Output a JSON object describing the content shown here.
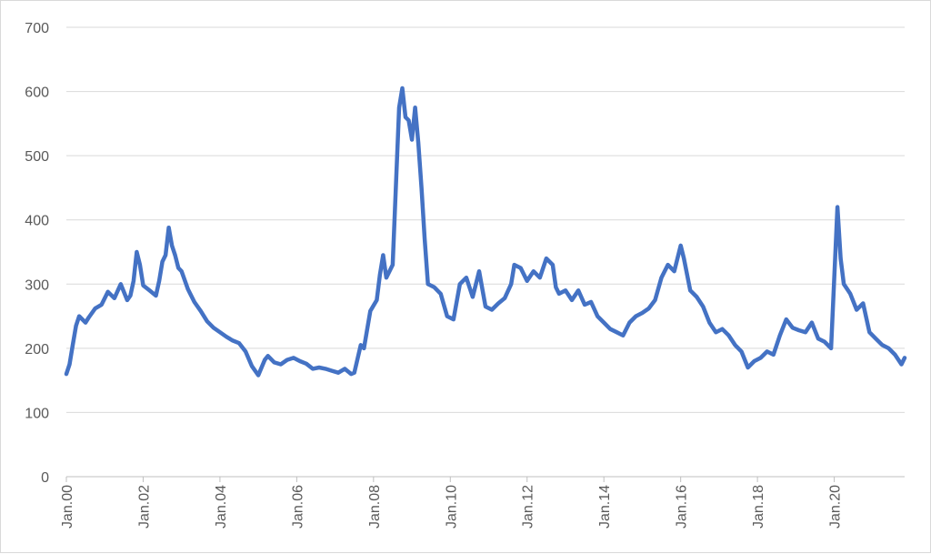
{
  "chart_data": {
    "type": "line",
    "title": "",
    "xlabel": "",
    "ylabel": "",
    "ylim": [
      0,
      700
    ],
    "yticks": [
      0,
      100,
      200,
      300,
      400,
      500,
      600,
      700
    ],
    "ytick_labels": [
      "0",
      "100",
      "200",
      "300",
      "400",
      "500",
      "600",
      "700"
    ],
    "xlim": [
      "2000-01",
      "2021-11"
    ],
    "xtick_dates": [
      "2000-01",
      "2002-01",
      "2004-01",
      "2006-01",
      "2008-01",
      "2010-01",
      "2012-01",
      "2014-01",
      "2016-01",
      "2018-01",
      "2020-01"
    ],
    "xtick_labels": [
      "Jan.00",
      "Jan.02",
      "Jan.04",
      "Jan.06",
      "Jan.08",
      "Jan.10",
      "Jan.12",
      "Jan.14",
      "Jan.16",
      "Jan.18",
      "Jan.20"
    ],
    "grid": true,
    "legend": "none",
    "line_color": "#4472c4",
    "series": [
      {
        "x": [
          "2000-01",
          "2000-02",
          "2000-03",
          "2000-04",
          "2000-05",
          "2000-07",
          "2000-08",
          "2000-10",
          "2000-12",
          "2001-02",
          "2001-04",
          "2001-06",
          "2001-08",
          "2001-09",
          "2001-10",
          "2001-11",
          "2001-12",
          "2002-01",
          "2002-03",
          "2002-05",
          "2002-06",
          "2002-07",
          "2002-08",
          "2002-09",
          "2002-10",
          "2002-11",
          "2002-12",
          "2003-01",
          "2003-03",
          "2003-05",
          "2003-07",
          "2003-09",
          "2003-11",
          "2004-01",
          "2004-03",
          "2004-05",
          "2004-07",
          "2004-09",
          "2004-11",
          "2005-01",
          "2005-03",
          "2005-04",
          "2005-06",
          "2005-08",
          "2005-10",
          "2005-12",
          "2006-02",
          "2006-04",
          "2006-06",
          "2006-08",
          "2006-10",
          "2006-12",
          "2007-02",
          "2007-04",
          "2007-06",
          "2007-07",
          "2007-09",
          "2007-10",
          "2007-12",
          "2008-02",
          "2008-03",
          "2008-04",
          "2008-05",
          "2008-07",
          "2008-09",
          "2008-10",
          "2008-11",
          "2008-12",
          "2009-01",
          "2009-02",
          "2009-03",
          "2009-04",
          "2009-05",
          "2009-06",
          "2009-08",
          "2009-10",
          "2009-12",
          "2010-02",
          "2010-04",
          "2010-06",
          "2010-08",
          "2010-10",
          "2010-12",
          "2011-02",
          "2011-04",
          "2011-06",
          "2011-08",
          "2011-09",
          "2011-11",
          "2012-01",
          "2012-03",
          "2012-05",
          "2012-07",
          "2012-09",
          "2012-10",
          "2012-11",
          "2013-01",
          "2013-03",
          "2013-05",
          "2013-07",
          "2013-09",
          "2013-11",
          "2014-01",
          "2014-03",
          "2014-05",
          "2014-07",
          "2014-09",
          "2014-11",
          "2015-01",
          "2015-03",
          "2015-05",
          "2015-07",
          "2015-09",
          "2015-11",
          "2016-01",
          "2016-02",
          "2016-04",
          "2016-06",
          "2016-08",
          "2016-10",
          "2016-12",
          "2017-02",
          "2017-04",
          "2017-06",
          "2017-08",
          "2017-10",
          "2017-12",
          "2018-02",
          "2018-04",
          "2018-06",
          "2018-08",
          "2018-10",
          "2018-12",
          "2019-02",
          "2019-04",
          "2019-06",
          "2019-08",
          "2019-10",
          "2019-12",
          "2020-02",
          "2020-03",
          "2020-04",
          "2020-06",
          "2020-08",
          "2020-10",
          "2020-12",
          "2021-02",
          "2021-04",
          "2021-06",
          "2021-08",
          "2021-10",
          "2021-11"
        ],
        "y": [
          160,
          175,
          205,
          235,
          250,
          240,
          248,
          262,
          268,
          288,
          278,
          300,
          275,
          282,
          305,
          350,
          330,
          298,
          290,
          282,
          305,
          335,
          345,
          388,
          360,
          345,
          325,
          320,
          292,
          272,
          258,
          242,
          232,
          225,
          218,
          212,
          208,
          195,
          172,
          158,
          182,
          188,
          178,
          175,
          182,
          185,
          180,
          176,
          168,
          170,
          168,
          165,
          162,
          168,
          160,
          162,
          205,
          200,
          258,
          275,
          315,
          345,
          310,
          330,
          575,
          605,
          560,
          555,
          525,
          575,
          520,
          450,
          370,
          300,
          295,
          285,
          250,
          245,
          300,
          310,
          280,
          320,
          265,
          260,
          270,
          278,
          300,
          330,
          325,
          305,
          320,
          310,
          340,
          330,
          295,
          285,
          290,
          275,
          290,
          268,
          272,
          250,
          240,
          230,
          225,
          220,
          240,
          250,
          255,
          262,
          275,
          310,
          330,
          320,
          360,
          340,
          290,
          280,
          265,
          240,
          225,
          230,
          220,
          205,
          195,
          170,
          180,
          185,
          195,
          190,
          220,
          245,
          232,
          228,
          225,
          240,
          215,
          210,
          200,
          420,
          340,
          300,
          285,
          260,
          270,
          225,
          215,
          205,
          200,
          190,
          175,
          185
        ]
      }
    ]
  }
}
